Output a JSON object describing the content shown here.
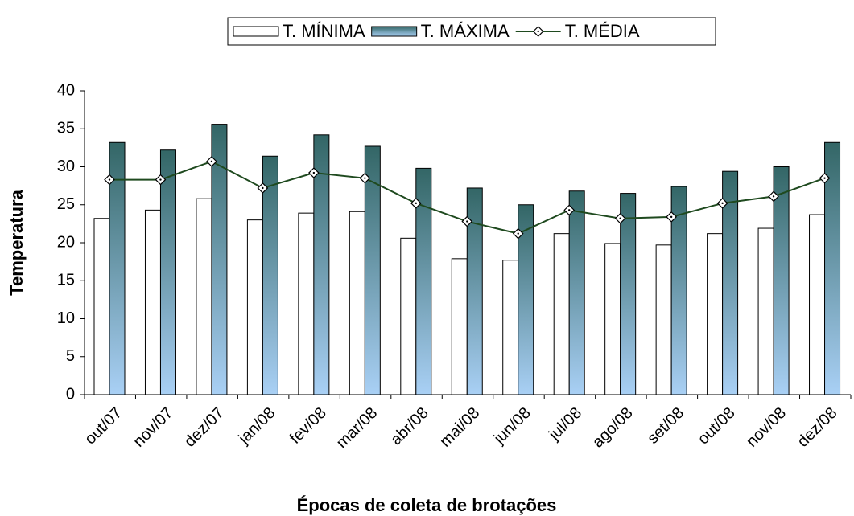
{
  "chart_data": {
    "type": "bar",
    "x_label": "Épocas de coleta de brotações",
    "y_label": "Temperatura",
    "categories": [
      "out/07",
      "nov/07",
      "dez/07",
      "jan/08",
      "fev/08",
      "mar/08",
      "abr/08",
      "mai/08",
      "jun/08",
      "jul/08",
      "ago/08",
      "set/08",
      "out/08",
      "nov/08",
      "dez/08"
    ],
    "series": [
      {
        "name": "T. MÍNIMA",
        "type": "bar",
        "color": "#ffffff",
        "values": [
          23.2,
          24.3,
          25.8,
          23.0,
          23.9,
          24.1,
          20.6,
          17.9,
          17.7,
          21.2,
          19.9,
          19.7,
          21.2,
          21.9,
          23.7
        ]
      },
      {
        "name": "T. MÁXIMA",
        "type": "bar",
        "color": "#336666",
        "values": [
          33.2,
          32.2,
          35.6,
          31.4,
          34.2,
          32.7,
          29.8,
          27.2,
          25.0,
          26.8,
          26.5,
          27.4,
          29.4,
          30.0,
          33.2
        ]
      },
      {
        "name": "T. MÉDIA",
        "type": "line",
        "color": "#1f4a1f",
        "values": [
          28.3,
          28.3,
          30.7,
          27.2,
          29.2,
          28.5,
          25.2,
          22.8,
          21.2,
          24.3,
          23.2,
          23.4,
          25.2,
          26.1,
          28.5
        ]
      }
    ],
    "ylim": [
      0,
      40
    ],
    "yticks": [
      0,
      5,
      10,
      15,
      20,
      25,
      30,
      35,
      40
    ],
    "grid": false,
    "legend": "top"
  }
}
